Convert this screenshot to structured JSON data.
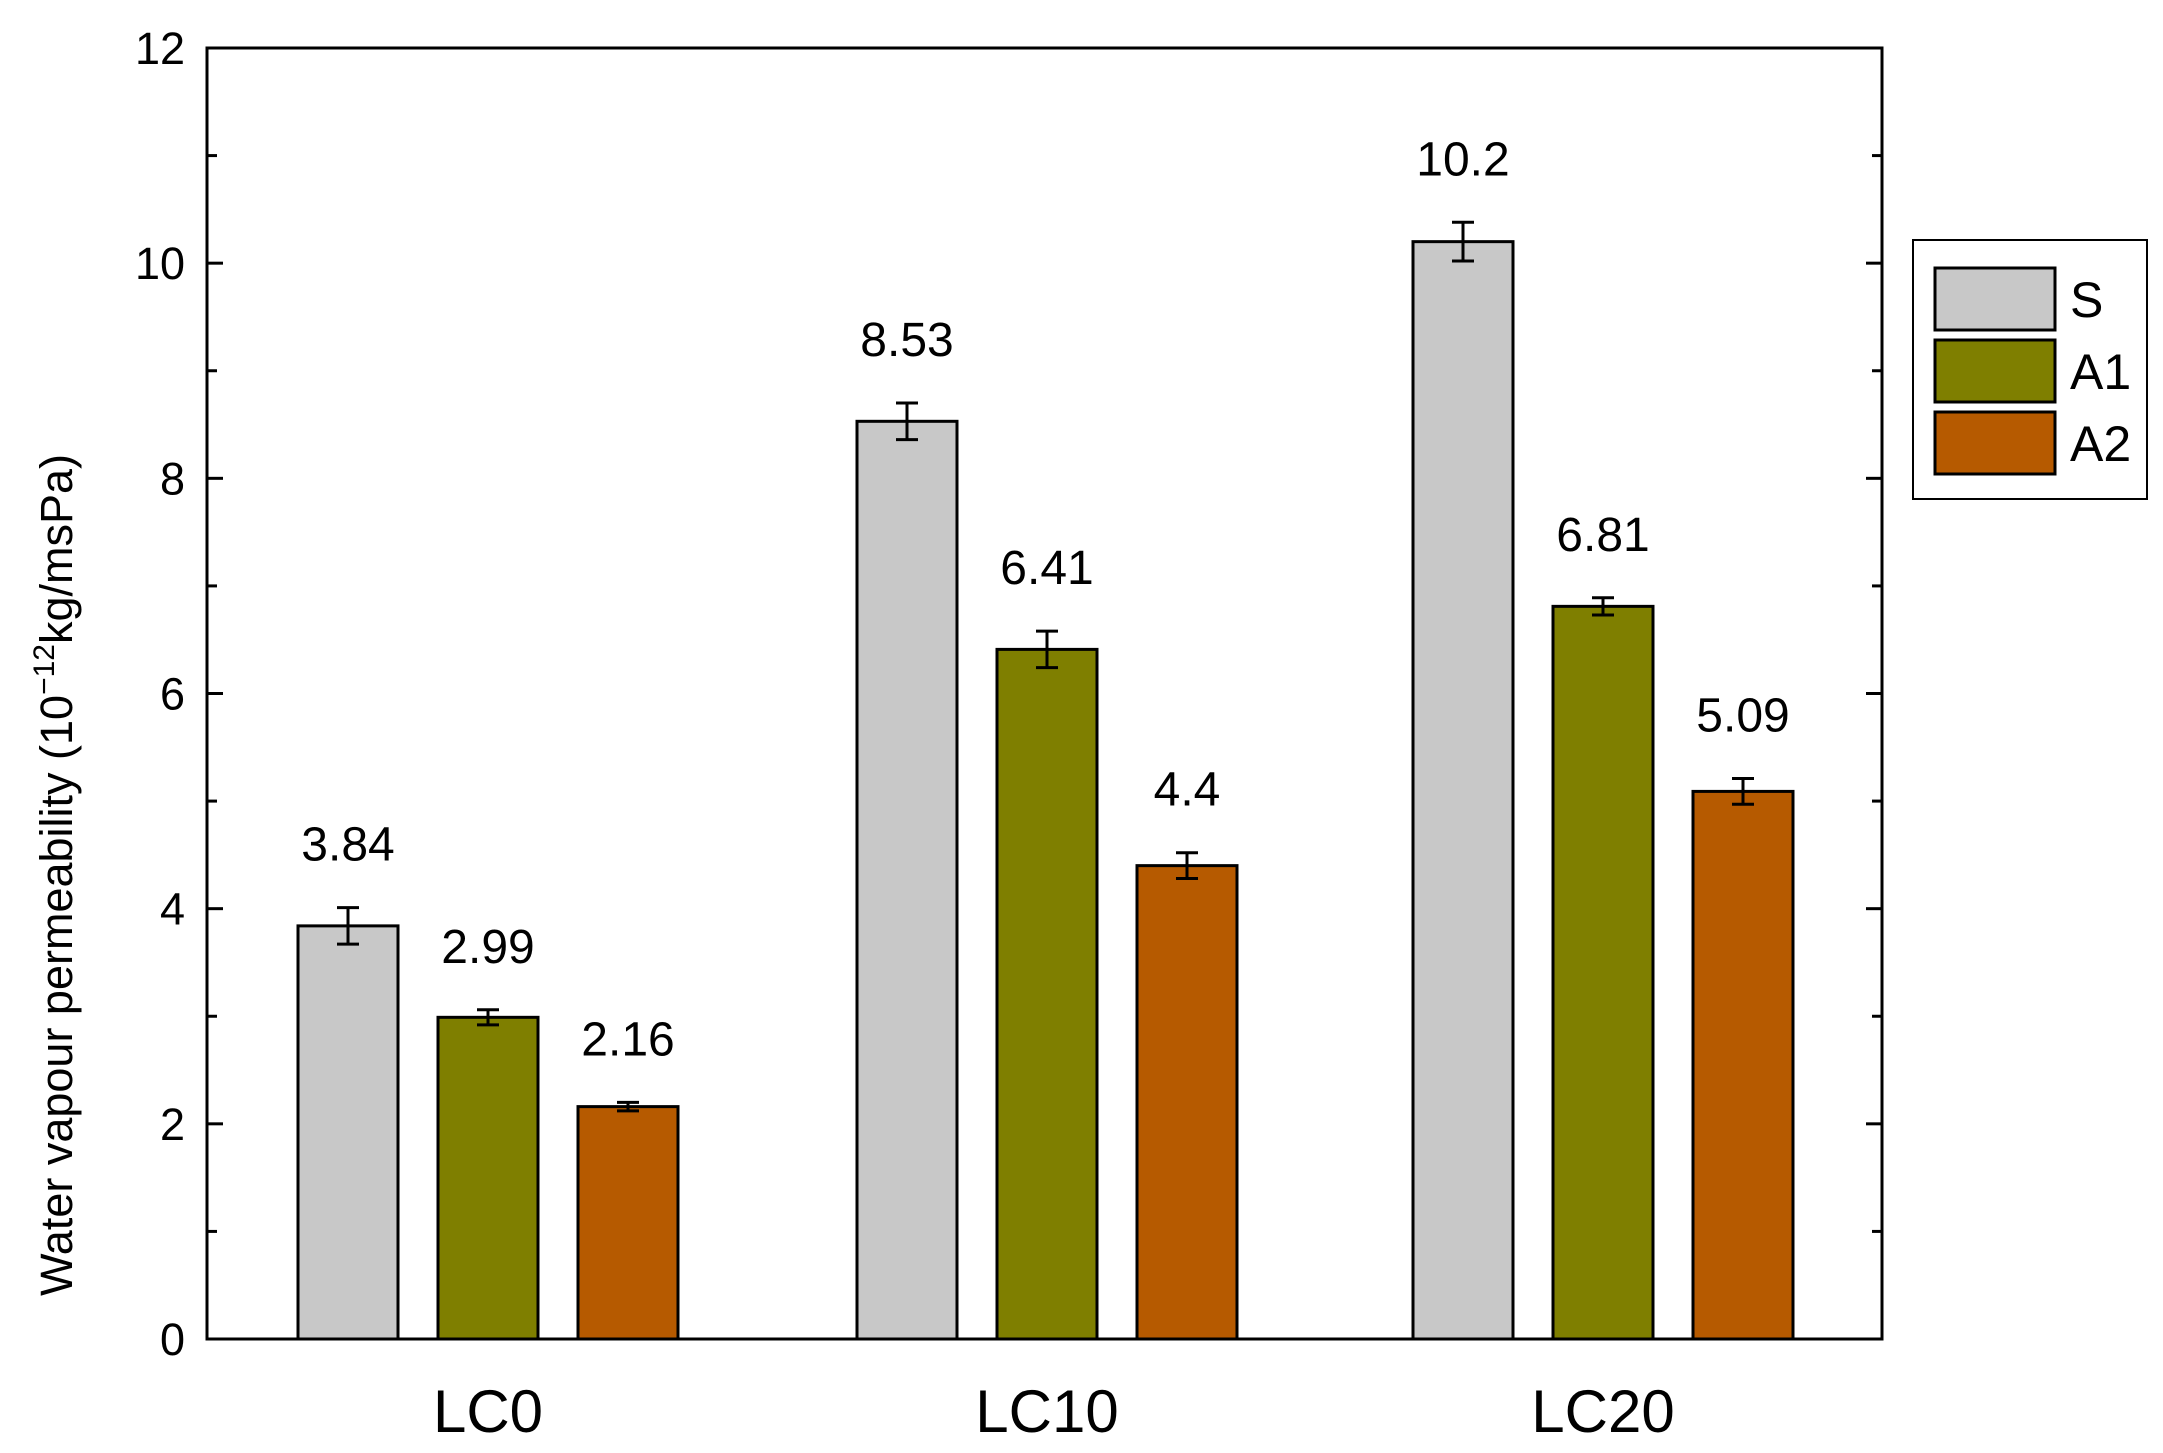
{
  "chart_data": {
    "type": "bar",
    "categories": [
      "LC0",
      "LC10",
      "LC20"
    ],
    "series": [
      {
        "name": "S",
        "color": "#c8c8c8",
        "values": [
          3.84,
          8.53,
          10.2
        ],
        "errors": [
          0.17,
          0.17,
          0.18
        ],
        "labels": [
          "3.84",
          "8.53",
          "10.2"
        ]
      },
      {
        "name": "A1",
        "color": "#7f7f00",
        "values": [
          2.99,
          6.41,
          6.81
        ],
        "errors": [
          0.07,
          0.17,
          0.08
        ],
        "labels": [
          "2.99",
          "6.41",
          "6.81"
        ]
      },
      {
        "name": "A2",
        "color": "#b65a00",
        "values": [
          2.16,
          4.4,
          5.09
        ],
        "errors": [
          0.04,
          0.12,
          0.12
        ],
        "labels": [
          "2.16",
          "4.4",
          "5.09"
        ]
      }
    ],
    "title": "",
    "xlabel": "",
    "ylabel_main": "Water vapour permeability (10",
    "ylabel_exp": "−12",
    "ylabel_unit": "kg/msPa)",
    "ylim": [
      0,
      12
    ],
    "yticks": [
      "0",
      "2",
      "4",
      "6",
      "8",
      "10",
      "12"
    ],
    "legend_position": "right",
    "grid": false
  }
}
